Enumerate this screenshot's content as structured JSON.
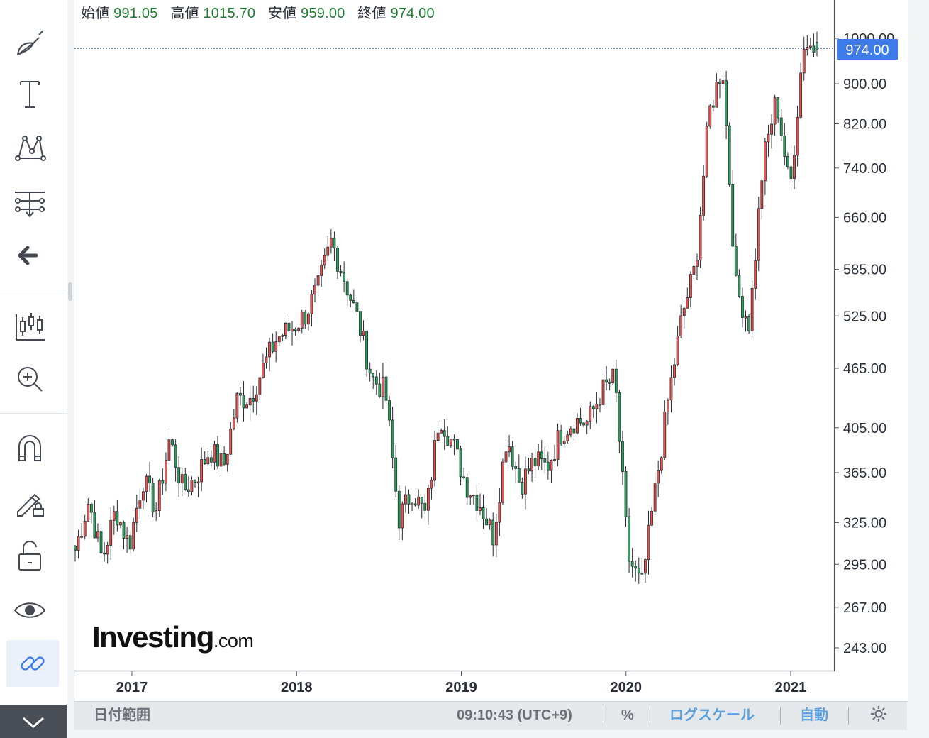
{
  "toolbar": {
    "tools": [
      "brush-icon",
      "text-icon",
      "pattern-icon",
      "fib-icon",
      "back-arrow-icon",
      "chart-type-icon",
      "zoom-in-icon",
      "magnet-icon",
      "lock-drawing-icon",
      "unlock-icon",
      "eye-icon",
      "link-icon",
      "chevron-down-icon"
    ]
  },
  "legend": {
    "open_label": "始値",
    "open": "991.05",
    "high_label": "高値",
    "high": "1015.70",
    "low_label": "安値",
    "low": "959.00",
    "close_label": "終値",
    "close": "974.00"
  },
  "last_price_label": "974.00",
  "logo": {
    "brand": "Investing",
    "suffix": ".com"
  },
  "bottom_bar": {
    "date_range": "日付範囲",
    "time": "09:10:43 (UTC+9)",
    "percent": "%",
    "log_scale": "ログスケール",
    "auto": "自動",
    "settings_icon": "gear-icon"
  },
  "colors": {
    "up": "#f05350",
    "down": "#26a65b",
    "wick": "#26292f",
    "accent": "#3d7be8",
    "axis": "#2a2e39"
  },
  "chart_data": {
    "type": "candlestick",
    "scale": "log",
    "interval": "weekly",
    "y_ticks": [
      "1000.00",
      "900.00",
      "820.00",
      "740.00",
      "660.00",
      "585.00",
      "525.00",
      "465.00",
      "405.00",
      "365.00",
      "325.00",
      "295.00",
      "267.00",
      "243.00"
    ],
    "x_ticks": [
      "2017",
      "2018",
      "2019",
      "2020",
      "2021"
    ],
    "last_price": 974.0,
    "ohlc_last": {
      "open": 991.05,
      "high": 1015.7,
      "low": 959.0,
      "close": 974.0
    },
    "path_points": [
      [
        "2016-10",
        305
      ],
      [
        "2016-11",
        342
      ],
      [
        "2016-12",
        298
      ],
      [
        "2017-01",
        335
      ],
      [
        "2017-02",
        308
      ],
      [
        "2017-03",
        360
      ],
      [
        "2017-04",
        335
      ],
      [
        "2017-05",
        395
      ],
      [
        "2017-06",
        350
      ],
      [
        "2017-07",
        362
      ],
      [
        "2017-08",
        385
      ],
      [
        "2017-09",
        370
      ],
      [
        "2017-10",
        432
      ],
      [
        "2017-11",
        435
      ],
      [
        "2017-12",
        468
      ],
      [
        "2018-01",
        500
      ],
      [
        "2018-02",
        510
      ],
      [
        "2018-03",
        525
      ],
      [
        "2018-04",
        560
      ],
      [
        "2018-05",
        625
      ],
      [
        "2018-06",
        570
      ],
      [
        "2018-07",
        518
      ],
      [
        "2018-08",
        455
      ],
      [
        "2018-09",
        440
      ],
      [
        "2018-10",
        328
      ],
      [
        "2018-11",
        350
      ],
      [
        "2018-12",
        330
      ],
      [
        "2019-01",
        418
      ],
      [
        "2019-02",
        390
      ],
      [
        "2019-03",
        355
      ],
      [
        "2019-04",
        340
      ],
      [
        "2019-05",
        315
      ],
      [
        "2019-06",
        398
      ],
      [
        "2019-07",
        355
      ],
      [
        "2019-08",
        375
      ],
      [
        "2019-09",
        370
      ],
      [
        "2019-10",
        400
      ],
      [
        "2019-11",
        412
      ],
      [
        "2019-12",
        410
      ],
      [
        "2020-01",
        440
      ],
      [
        "2020-02",
        455
      ],
      [
        "2020-03",
        300
      ],
      [
        "2020-03b",
        280
      ],
      [
        "2020-04",
        350
      ],
      [
        "2020-05",
        435
      ],
      [
        "2020-06",
        525
      ],
      [
        "2020-07",
        590
      ],
      [
        "2020-08",
        840
      ],
      [
        "2020-09",
        940
      ],
      [
        "2020-10",
        560
      ],
      [
        "2020-11",
        515
      ],
      [
        "2020-12",
        750
      ],
      [
        "2021-01",
        870
      ],
      [
        "2021-01b",
        700
      ],
      [
        "2021-02",
        990
      ],
      [
        "2021-03",
        974
      ]
    ]
  }
}
